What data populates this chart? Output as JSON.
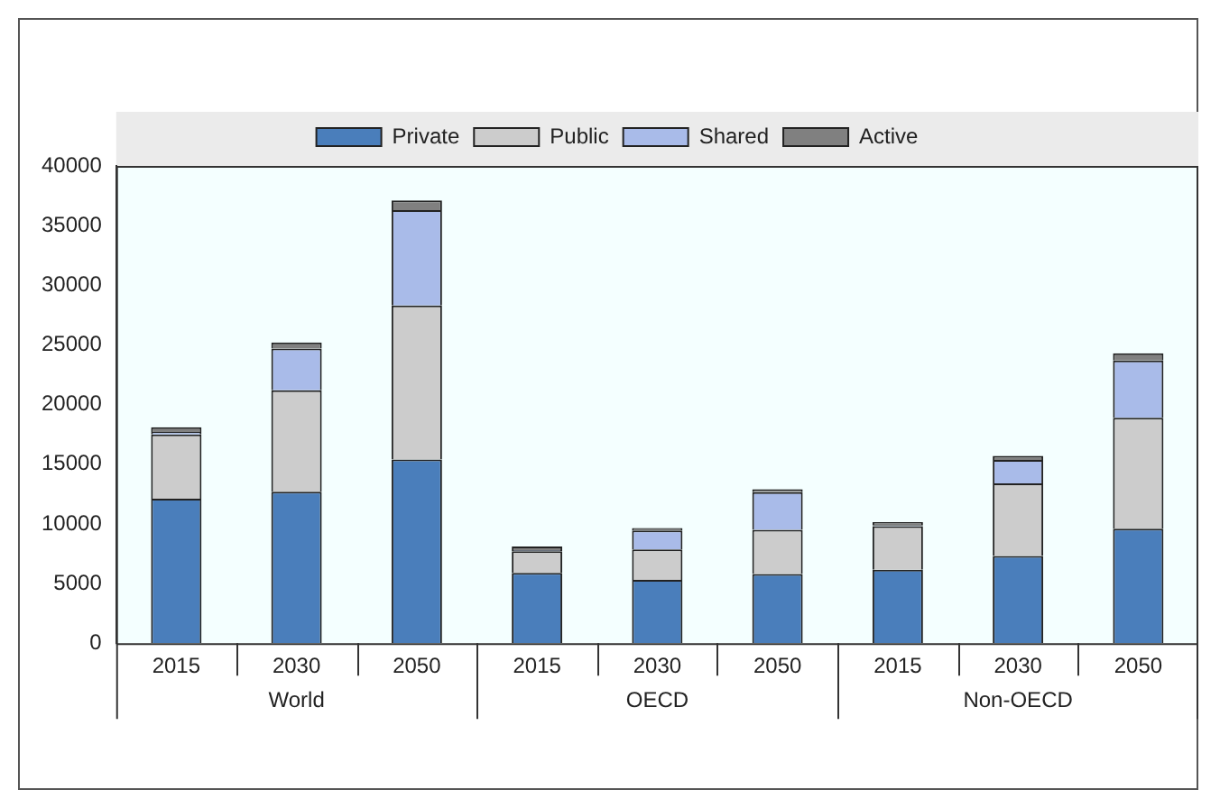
{
  "chart_data": {
    "type": "bar",
    "stacked": true,
    "categories": [
      "2015",
      "2030",
      "2050",
      "2015",
      "2030",
      "2050",
      "2015",
      "2030",
      "2050"
    ],
    "series": [
      {
        "name": "Private",
        "color": "#4a7ebb",
        "values": [
          12100,
          12700,
          15400,
          5900,
          5300,
          5800,
          6150,
          7300,
          9600
        ]
      },
      {
        "name": "Public",
        "color": "#cccccc",
        "values": [
          5400,
          8500,
          12900,
          1800,
          2550,
          3700,
          3650,
          6100,
          9300
        ]
      },
      {
        "name": "Shared",
        "color": "#a9bbe9",
        "values": [
          200,
          3500,
          8000,
          100,
          1600,
          3150,
          100,
          1950,
          4800
        ]
      },
      {
        "name": "Active",
        "color": "#808080",
        "values": [
          400,
          500,
          800,
          300,
          200,
          250,
          250,
          350,
          600
        ]
      }
    ],
    "ylim": [
      0,
      40000
    ],
    "yticks": [
      0,
      5000,
      10000,
      15000,
      20000,
      25000,
      30000,
      35000,
      40000
    ],
    "grid": false,
    "legend": "top",
    "annotations": [
      "World",
      "OECD",
      "Non-OECD"
    ]
  }
}
